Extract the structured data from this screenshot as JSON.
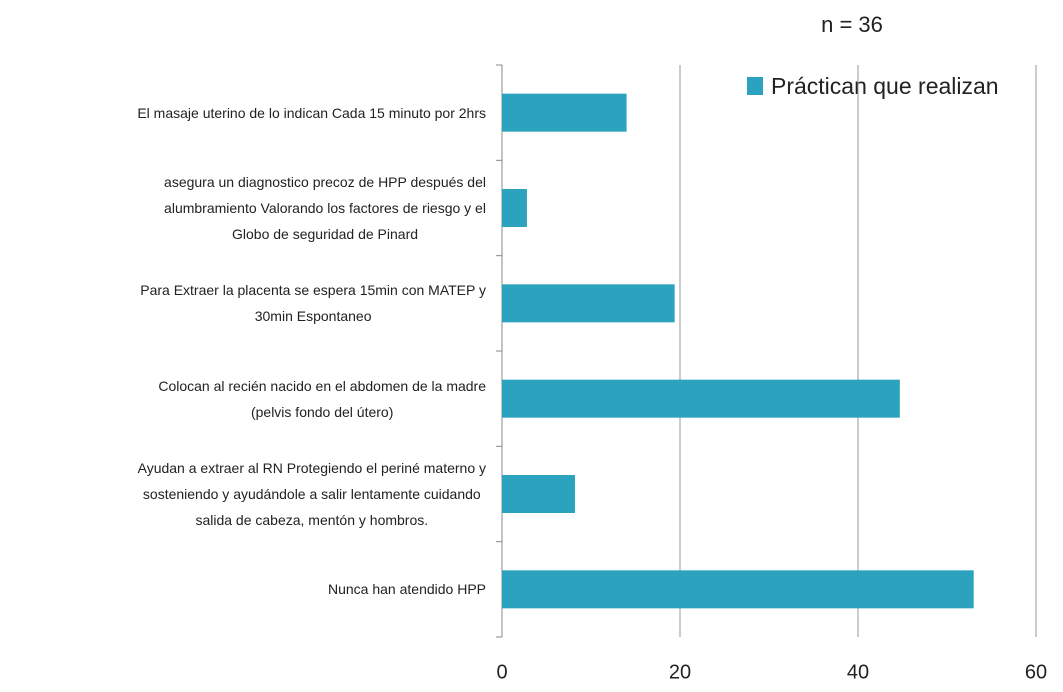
{
  "chart_data": {
    "type": "bar",
    "orientation": "horizontal",
    "title": "n = 36",
    "categories": [
      "El masaje uterino de lo indican Cada 15 minuto por 2hrs",
      "asegura un diagnostico precoz de HPP después del\nalumbramiento Valorando los factores de riesgo y el\nGlobo de seguridad de Pinard",
      "Para Extraer la placenta se espera 15min con MATEP y\n30min Espontaneo",
      "Colocan al recién nacido en el abdomen de la madre\n(pelvis fondo del útero)",
      "Ayudan a extraer al RN Protegiendo el periné materno y\nsosteniendo y ayudándole a salir lentamente cuidando\nsalida de cabeza, mentón y hombros.",
      "Nunca han atendido HPP"
    ],
    "series": [
      {
        "name": "Práctican que realizan",
        "color": "#2ca3be",
        "values": [
          14,
          2.8,
          19.4,
          44.7,
          8.2,
          53
        ]
      }
    ],
    "xlim": [
      0,
      60
    ],
    "xticks": [
      0,
      20,
      40,
      60
    ],
    "grid": true,
    "legend": "top-right"
  }
}
